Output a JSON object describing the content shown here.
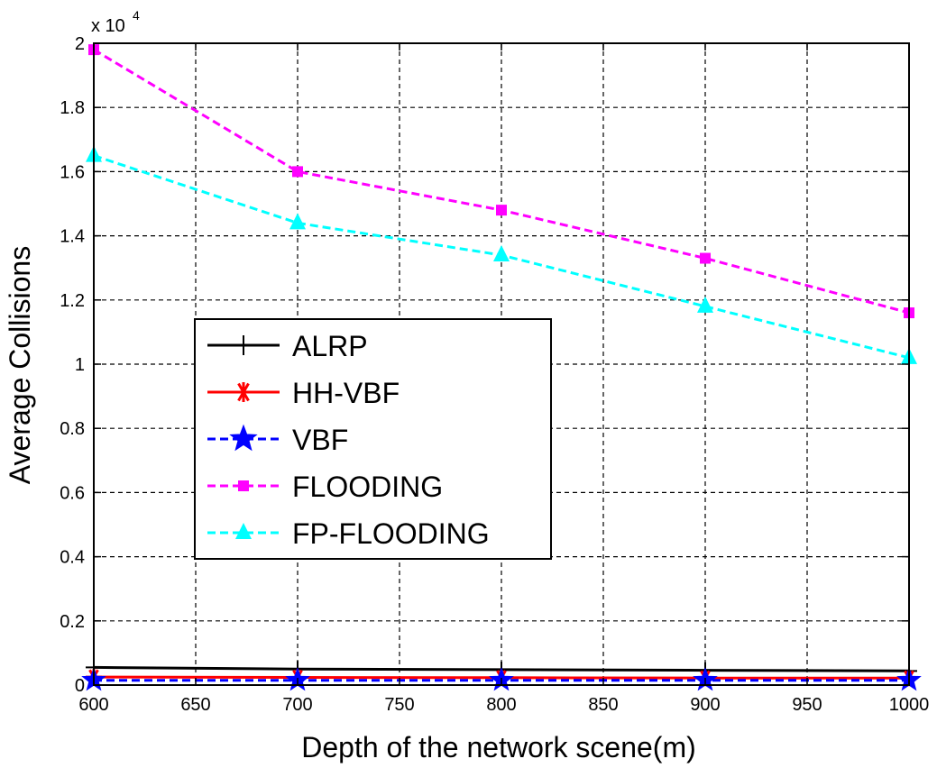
{
  "chart_data": {
    "type": "line",
    "title": "",
    "xlabel": "Depth of the network scene(m)",
    "ylabel": "Average Collisions",
    "y_multiplier_base": "x 10",
    "y_multiplier_exponent": "4",
    "xlim": [
      600,
      1000
    ],
    "ylim": [
      0,
      2
    ],
    "x_ticks": [
      600,
      650,
      700,
      750,
      800,
      850,
      900,
      950,
      1000
    ],
    "x_tick_labels": [
      "600",
      "650",
      "700",
      "750",
      "800",
      "850",
      "900",
      "950",
      "1000"
    ],
    "y_ticks": [
      0,
      0.2,
      0.4,
      0.6,
      0.8,
      1,
      1.2,
      1.4,
      1.6,
      1.8,
      2
    ],
    "y_tick_labels": [
      "0",
      "0.2",
      "0.4",
      "0.6",
      "0.8",
      "1",
      "1.2",
      "1.4",
      "1.6",
      "1.8",
      "2"
    ],
    "grid": true,
    "legend_position": "center-left",
    "x": [
      600,
      700,
      800,
      900,
      1000
    ],
    "series": [
      {
        "name": "ALRP",
        "values": [
          0.055,
          0.05,
          0.048,
          0.046,
          0.044
        ],
        "color": "#000000",
        "line_style": "solid",
        "marker": "plus"
      },
      {
        "name": "HH-VBF",
        "values": [
          0.025,
          0.024,
          0.023,
          0.022,
          0.022
        ],
        "color": "#ff0000",
        "line_style": "solid",
        "marker": "asterisk"
      },
      {
        "name": "VBF",
        "values": [
          0.015,
          0.015,
          0.015,
          0.015,
          0.015
        ],
        "color": "#0000ff",
        "line_style": "dashed",
        "marker": "star"
      },
      {
        "name": "FLOODING",
        "values": [
          1.98,
          1.6,
          1.48,
          1.33,
          1.16
        ],
        "color": "#ff00ff",
        "line_style": "dashed",
        "marker": "square"
      },
      {
        "name": "FP-FLOODING",
        "values": [
          1.65,
          1.44,
          1.34,
          1.18,
          1.02
        ],
        "color": "#00ffff",
        "line_style": "dashed",
        "marker": "triangle"
      }
    ]
  }
}
